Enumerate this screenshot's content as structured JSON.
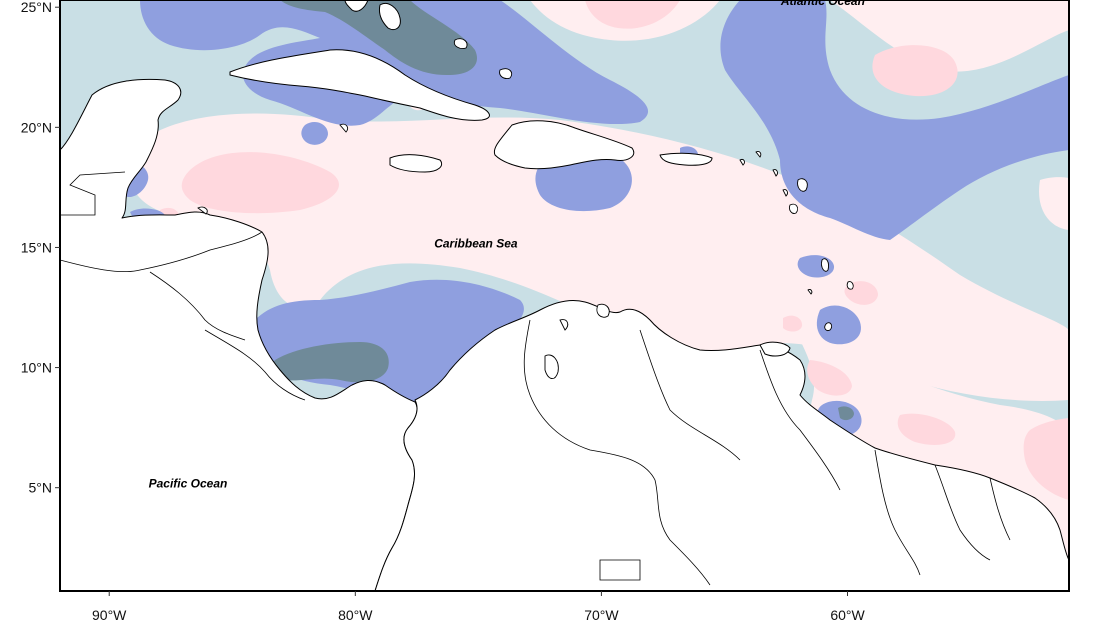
{
  "colors": {
    "background": "#ffffff",
    "land": "#ffffff",
    "outline": "#000000",
    "pale_teal": "#c9dfe5",
    "blue": "#8f9fdf",
    "dark_teal": "#6f8a99",
    "pale_pink": "#ffeef0",
    "pink": "#ffd8de"
  },
  "map": {
    "lon_range": [
      -92,
      -51
    ],
    "lat_range": [
      0.7,
      25.3
    ],
    "x_ticks": [
      {
        "value": -90,
        "label": "90°W"
      },
      {
        "value": -80,
        "label": "80°W"
      },
      {
        "value": -70,
        "label": "70°W"
      },
      {
        "value": -60,
        "label": "60°W"
      }
    ],
    "y_ticks": [
      {
        "value": 25,
        "label": "25°N"
      },
      {
        "value": 20,
        "label": "20°N"
      },
      {
        "value": 15,
        "label": "15°N"
      },
      {
        "value": 10,
        "label": "10°N"
      },
      {
        "value": 5,
        "label": "5°N"
      }
    ],
    "labels": [
      {
        "name": "atlantic",
        "text": "Atlantic Ocean",
        "lon": -61.0,
        "lat": 25.1
      },
      {
        "name": "caribbean",
        "text": "Caribbean Sea",
        "lon": -75.1,
        "lat": 15.0
      },
      {
        "name": "pacific",
        "text": "Pacific Ocean",
        "lon": -86.8,
        "lat": 5.0
      }
    ]
  }
}
